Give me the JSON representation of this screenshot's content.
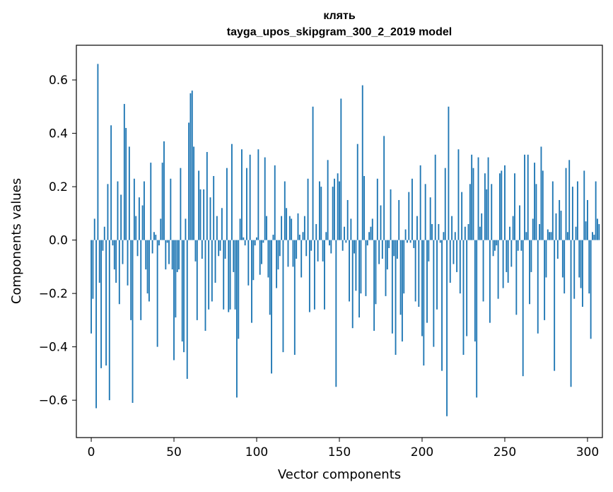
{
  "chart_data": {
    "type": "bar",
    "title": "клять",
    "subtitle": "tayga_upos_skipgram_300_2_2019 model",
    "xlabel": "Vector components",
    "ylabel": "Components values",
    "xlim": [
      -9,
      309
    ],
    "ylim": [
      -0.74,
      0.73
    ],
    "xticks": [
      0,
      50,
      100,
      150,
      200,
      250,
      300
    ],
    "xtick_labels": [
      "0",
      "50",
      "100",
      "150",
      "200",
      "250",
      "300"
    ],
    "yticks": [
      -0.6,
      -0.4,
      -0.2,
      0.0,
      0.2,
      0.4,
      0.6
    ],
    "ytick_labels": [
      "−0.6",
      "−0.4",
      "−0.2",
      "0.0",
      "0.2",
      "0.4",
      "0.6"
    ],
    "bar_color": "#1f77b4",
    "grid": false,
    "values": [
      -0.35,
      -0.22,
      0.08,
      -0.63,
      0.66,
      -0.16,
      -0.48,
      -0.04,
      0.05,
      -0.47,
      0.21,
      -0.6,
      0.43,
      -0.02,
      -0.11,
      -0.16,
      0.22,
      -0.24,
      0.17,
      -0.09,
      0.51,
      0.42,
      -0.17,
      0.35,
      -0.3,
      -0.61,
      0.23,
      0.09,
      -0.06,
      0.16,
      -0.3,
      0.13,
      0.22,
      -0.11,
      -0.2,
      -0.23,
      0.29,
      -0.05,
      0.03,
      0.02,
      -0.4,
      -0.02,
      0.08,
      0.29,
      0.37,
      -0.11,
      -0.01,
      -0.09,
      0.23,
      -0.11,
      -0.45,
      -0.29,
      -0.12,
      -0.11,
      0.27,
      -0.38,
      -0.42,
      0.08,
      -0.52,
      0.44,
      0.55,
      0.56,
      0.35,
      -0.08,
      -0.3,
      0.26,
      0.19,
      -0.07,
      0.19,
      -0.34,
      0.33,
      -0.26,
      0.16,
      -0.23,
      0.24,
      -0.16,
      0.09,
      -0.06,
      -0.04,
      0.12,
      -0.26,
      -0.07,
      0.27,
      -0.27,
      -0.26,
      0.36,
      -0.12,
      -0.26,
      -0.59,
      -0.37,
      0.08,
      0.34,
      0.01,
      -0.02,
      0.27,
      -0.17,
      0.32,
      -0.31,
      -0.15,
      -0.02,
      0.01,
      0.34,
      -0.13,
      -0.09,
      -0.01,
      0.31,
      0.09,
      -0.14,
      -0.28,
      -0.5,
      0.02,
      0.28,
      -0.18,
      -0.11,
      -0.06,
      0.09,
      -0.42,
      0.22,
      0.12,
      -0.1,
      0.09,
      0.08,
      -0.1,
      -0.43,
      -0.07,
      0.1,
      0.02,
      -0.14,
      0.03,
      0.09,
      -0.06,
      0.23,
      -0.27,
      -0.04,
      0.5,
      -0.26,
      0.06,
      -0.08,
      0.22,
      0.2,
      -0.08,
      -0.26,
      0.03,
      0.3,
      -0.02,
      -0.05,
      0.2,
      0.23,
      -0.55,
      0.25,
      0.22,
      0.53,
      -0.04,
      0.05,
      -0.01,
      0.15,
      -0.23,
      0.08,
      -0.33,
      -0.05,
      -0.19,
      0.36,
      -0.29,
      -0.2,
      0.58,
      0.24,
      -0.21,
      -0.02,
      0.03,
      0.05,
      0.08,
      -0.34,
      -0.24,
      0.23,
      -0.09,
      0.13,
      -0.07,
      0.39,
      -0.21,
      -0.11,
      -0.03,
      0.19,
      -0.35,
      -0.06,
      -0.43,
      -0.07,
      0.15,
      -0.28,
      -0.38,
      -0.2,
      0.04,
      -0.01,
      0.18,
      -0.01,
      0.23,
      -0.03,
      -0.23,
      0.09,
      -0.25,
      0.28,
      -0.36,
      -0.47,
      0.21,
      -0.31,
      -0.08,
      0.16,
      0.06,
      -0.4,
      0.32,
      -0.26,
      0.06,
      -0.01,
      -0.49,
      0.03,
      0.27,
      -0.66,
      0.5,
      -0.16,
      0.09,
      -0.09,
      0.03,
      -0.12,
      0.34,
      -0.2,
      0.18,
      -0.43,
      0.05,
      -0.36,
      0.06,
      0.21,
      0.32,
      0.27,
      -0.38,
      -0.59,
      0.31,
      0.05,
      0.1,
      -0.23,
      0.25,
      0.19,
      0.31,
      -0.31,
      0.21,
      -0.06,
      -0.04,
      -0.02,
      -0.22,
      0.25,
      0.26,
      -0.18,
      0.28,
      -0.12,
      -0.16,
      0.05,
      -0.1,
      0.09,
      0.25,
      -0.28,
      -0.04,
      0.13,
      -0.04,
      -0.51,
      0.32,
      0.03,
      0.32,
      -0.24,
      -0.12,
      0.08,
      0.29,
      0.21,
      -0.35,
      0.06,
      0.35,
      0.26,
      -0.3,
      -0.14,
      0.04,
      0.03,
      0.03,
      0.22,
      -0.49,
      0.1,
      -0.07,
      0.15,
      0.11,
      -0.14,
      -0.2,
      0.27,
      0.03,
      0.3,
      -0.55,
      0.2,
      -0.22,
      0.05,
      0.22,
      -0.14,
      -0.18,
      -0.25,
      0.26,
      0.07,
      0.15,
      -0.2,
      -0.37,
      0.03,
      0.02,
      0.22,
      0.08,
      0.06
    ]
  }
}
